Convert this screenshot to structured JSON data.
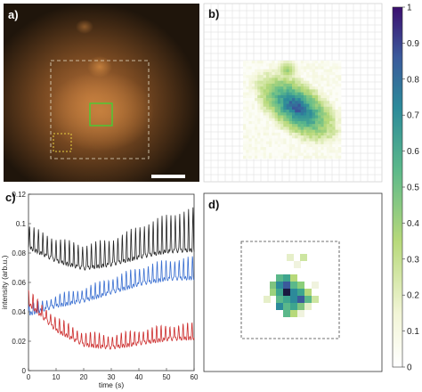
{
  "panels": {
    "a": {
      "label": "a)"
    },
    "b": {
      "label": "b)"
    },
    "c": {
      "label": "c)"
    },
    "d": {
      "label": "d)"
    }
  },
  "colorbar": {
    "ticks": [
      "1",
      "0.9",
      "0.8",
      "0.7",
      "0.6",
      "0.5",
      "0.4",
      "0.3",
      "0.2",
      "0.1",
      "0"
    ],
    "colors": {
      "low": "#fefefe",
      "mid": "#3ea58e",
      "high": "#3b0f6f"
    }
  },
  "chart_data": {
    "type": "line",
    "xlabel": "time (s)",
    "ylabel": "intensity (arb.u.)",
    "xlim": [
      0,
      60
    ],
    "ylim": [
      0,
      0.12
    ],
    "x_ticks": [
      "0",
      "10",
      "20",
      "30",
      "40",
      "50",
      "60"
    ],
    "y_ticks": [
      "0",
      "0.02",
      "0.04",
      "0.06",
      "0.08",
      "0.1",
      "0.12"
    ],
    "series": [
      {
        "color": "#222222",
        "baseline": [
          [
            0,
            0.088
          ],
          [
            10,
            0.079
          ],
          [
            20,
            0.074
          ],
          [
            30,
            0.077
          ],
          [
            40,
            0.083
          ],
          [
            50,
            0.088
          ],
          [
            60,
            0.09
          ]
        ],
        "amplitude": [
          [
            0,
            0.01
          ],
          [
            30,
            0.012
          ],
          [
            60,
            0.02
          ]
        ]
      },
      {
        "color": "#3a6fd1",
        "baseline": [
          [
            0,
            0.04
          ],
          [
            10,
            0.046
          ],
          [
            20,
            0.05
          ],
          [
            30,
            0.056
          ],
          [
            40,
            0.062
          ],
          [
            50,
            0.066
          ],
          [
            60,
            0.067
          ]
        ],
        "amplitude": [
          [
            0,
            0.004
          ],
          [
            30,
            0.007
          ],
          [
            60,
            0.01
          ]
        ]
      },
      {
        "color": "#cc2b2b",
        "baseline": [
          [
            0,
            0.048
          ],
          [
            10,
            0.03
          ],
          [
            20,
            0.02
          ],
          [
            30,
            0.018
          ],
          [
            40,
            0.021
          ],
          [
            50,
            0.024
          ],
          [
            60,
            0.025
          ]
        ],
        "amplitude": [
          [
            0,
            0.006
          ],
          [
            30,
            0.006
          ],
          [
            60,
            0.007
          ]
        ]
      }
    ],
    "period_s": 1.6
  }
}
